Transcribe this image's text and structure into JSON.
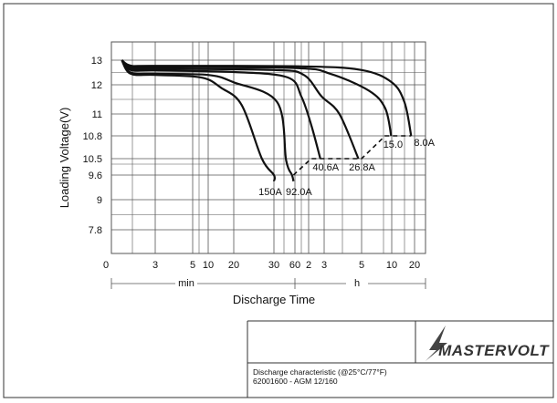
{
  "colors": {
    "ink": "#111111",
    "grid": "#555555",
    "frame": "#333333",
    "background": "#ffffff"
  },
  "chart_data": {
    "type": "line",
    "title": "",
    "ylabel": "Loading Voltage(V)",
    "xlabel": "Discharge Time",
    "grid": true,
    "y_ticks": [
      {
        "label": "13",
        "value": 13
      },
      {
        "label": "12",
        "value": 12
      },
      {
        "label": "11",
        "value": 11
      },
      {
        "label": "10.8",
        "value": 10.8
      },
      {
        "label": "10.5",
        "value": 10.5
      },
      {
        "label": "9.6",
        "value": 9.6
      },
      {
        "label": "9",
        "value": 9
      },
      {
        "label": "7.8",
        "value": 7.8
      }
    ],
    "x_ticks": [
      {
        "label": "0",
        "minutes": 0,
        "show_grid": false
      },
      {
        "label": "3",
        "minutes": 3,
        "show_grid": true
      },
      {
        "label": "5",
        "minutes": 5,
        "show_grid": true
      },
      {
        "label": "10",
        "minutes": 10,
        "show_grid": true
      },
      {
        "label": "20",
        "minutes": 20,
        "show_grid": true
      },
      {
        "label": "30",
        "minutes": 30,
        "show_grid": true
      },
      {
        "label": "60",
        "minutes": 60,
        "show_grid": true
      },
      {
        "label": "2",
        "minutes": 120,
        "show_grid": true
      },
      {
        "label": "3",
        "minutes": 180,
        "show_grid": true
      },
      {
        "label": "5",
        "minutes": 300,
        "show_grid": true
      },
      {
        "label": "10",
        "minutes": 600,
        "show_grid": true
      },
      {
        "label": "20",
        "minutes": 1200,
        "show_grid": true
      }
    ],
    "x_extra_gridlines_minutes": [
      1.5,
      7.5,
      45,
      90,
      240,
      450,
      900
    ],
    "unit_labels": [
      {
        "text": "min",
        "at_minutes": 8
      },
      {
        "text": "h",
        "at_minutes": 240
      }
    ],
    "series": [
      {
        "name": "150A",
        "points": [
          [
            0.9,
            13
          ],
          [
            1.4,
            12.45
          ],
          [
            3,
            12.4
          ],
          [
            8,
            12.3
          ],
          [
            15,
            11.9
          ],
          [
            22,
            11.3
          ],
          [
            27,
            10.5
          ],
          [
            30,
            9.6
          ],
          [
            30,
            9.45
          ]
        ]
      },
      {
        "name": "92.0A",
        "points": [
          [
            0.9,
            13
          ],
          [
            1.4,
            12.5
          ],
          [
            3,
            12.45
          ],
          [
            10,
            12.4
          ],
          [
            20,
            12.1
          ],
          [
            35,
            11.4
          ],
          [
            48,
            10.4
          ],
          [
            56,
            9.6
          ],
          [
            58,
            9.45
          ]
        ]
      },
      {
        "name": "40.6A",
        "points": [
          [
            0.9,
            13
          ],
          [
            1.4,
            12.6
          ],
          [
            3,
            12.58
          ],
          [
            20,
            12.52
          ],
          [
            50,
            12.3
          ],
          [
            90,
            11.6
          ],
          [
            130,
            10.9
          ],
          [
            165,
            10.5
          ]
        ]
      },
      {
        "name": "26.8A",
        "points": [
          [
            0.9,
            13
          ],
          [
            1.4,
            12.67
          ],
          [
            3,
            12.65
          ],
          [
            30,
            12.6
          ],
          [
            100,
            12.4
          ],
          [
            170,
            11.6
          ],
          [
            230,
            11.0
          ],
          [
            290,
            10.5
          ]
        ]
      },
      {
        "name": "15.0",
        "points": [
          [
            0.9,
            13
          ],
          [
            1.4,
            12.73
          ],
          [
            3,
            12.72
          ],
          [
            60,
            12.68
          ],
          [
            200,
            12.45
          ],
          [
            350,
            11.8
          ],
          [
            480,
            11.2
          ],
          [
            590,
            10.8
          ]
        ]
      },
      {
        "name": "8.0A",
        "points": [
          [
            0.9,
            13
          ],
          [
            1.4,
            12.78
          ],
          [
            3,
            12.77
          ],
          [
            90,
            12.75
          ],
          [
            300,
            12.6
          ],
          [
            600,
            12.1
          ],
          [
            900,
            11.4
          ],
          [
            1100,
            10.8
          ]
        ]
      }
    ],
    "cutoff_dashed": [
      [
        58,
        9.6
      ],
      [
        130,
        10.5
      ],
      [
        300,
        10.5
      ],
      [
        480,
        10.8
      ],
      [
        1100,
        10.8
      ]
    ],
    "series_labels": [
      {
        "series": "150A",
        "text": "150A"
      },
      {
        "series": "92.0A",
        "text": "92.0A"
      },
      {
        "series": "40.6A",
        "text": "40.6A"
      },
      {
        "series": "26.8A",
        "text": "26.8A"
      },
      {
        "series": "15.0",
        "text": "15.0"
      },
      {
        "series": "8.0A",
        "text": "8.0A"
      }
    ]
  },
  "title_block": {
    "brand": "MASTERVOLT",
    "caption_line1": "Discharge characteristic (@25°C/77°F)",
    "caption_line2": "62001600 - AGM 12/160"
  }
}
